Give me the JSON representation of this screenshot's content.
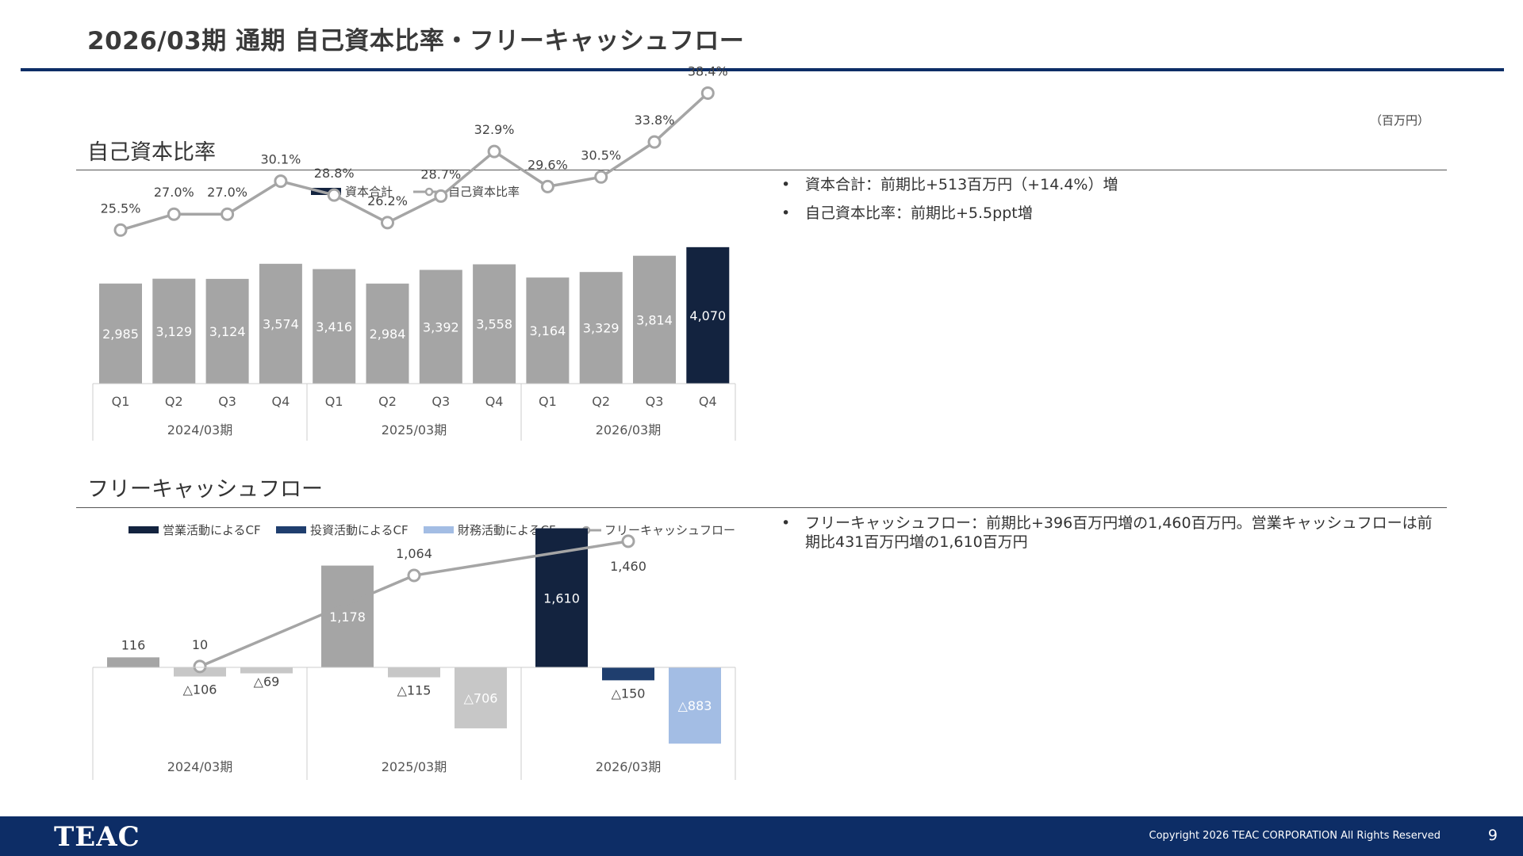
{
  "header": {
    "title": "2026/03期 通期 自己資本比率・フリーキャッシュフロー",
    "unit": "（百万円）"
  },
  "section1": {
    "title": "自己資本比率",
    "bullets": [
      "資本合計：前期比+513百万円（+14.4%）増",
      "自己資本比率：前期比+5.5ppt増"
    ]
  },
  "section2": {
    "title": "フリーキャッシュフロー",
    "bullets": [
      "フリーキャッシュフロー：前期比+396百万円増の1,460百万円。営業キャッシュフローは前期比431百万円増の1,610百万円"
    ]
  },
  "colors": {
    "navy": "#13233f",
    "grey": "#a5a5a5",
    "accent_rule": "#0d2d66",
    "invest": "#1f3e6e",
    "finance": "#a3bde4",
    "light_grey": "#c7c7c7"
  },
  "chart_data": [
    {
      "type": "bar",
      "legend": [
        "資本合計",
        "自己資本比率"
      ],
      "categories": [
        "Q1",
        "Q2",
        "Q3",
        "Q4",
        "Q1",
        "Q2",
        "Q3",
        "Q4",
        "Q1",
        "Q2",
        "Q3",
        "Q4"
      ],
      "groups": [
        "2024/03期",
        "2025/03期",
        "2026/03期"
      ],
      "series": [
        {
          "name": "資本合計",
          "values": [
            2985,
            3129,
            3124,
            3574,
            3416,
            2984,
            3392,
            3558,
            3164,
            3329,
            3814,
            4070
          ],
          "labels": [
            "2,985",
            "3,129",
            "3,124",
            "3,574",
            "3,416",
            "2,984",
            "3,392",
            "3,558",
            "3,164",
            "3,329",
            "3,814",
            "4,070"
          ]
        },
        {
          "name": "自己資本比率",
          "values": [
            25.5,
            27.0,
            27.0,
            30.1,
            28.8,
            26.2,
            28.7,
            32.9,
            29.6,
            30.5,
            33.8,
            38.4
          ],
          "labels": [
            "25.5%",
            "27.0%",
            "27.0%",
            "30.1%",
            "28.8%",
            "26.2%",
            "28.7%",
            "32.9%",
            "29.6%",
            "30.5%",
            "33.8%",
            "38.4%"
          ]
        }
      ]
    },
    {
      "type": "bar",
      "legend": [
        "営業活動によるCF",
        "投資活動によるCF",
        "財務活動によるCF",
        "フリーキャッシュフロー"
      ],
      "categories": [
        "2024/03期",
        "2025/03期",
        "2026/03期"
      ],
      "series": [
        {
          "name": "営業活動によるCF",
          "values": [
            116,
            1178,
            1610
          ],
          "labels": [
            "116",
            "1,178",
            "1,610"
          ]
        },
        {
          "name": "投資活動によるCF",
          "values": [
            -106,
            -115,
            -150
          ],
          "labels": [
            "△106",
            "△115",
            "△150"
          ]
        },
        {
          "name": "財務活動によるCF",
          "values": [
            -69,
            -706,
            -883
          ],
          "labels": [
            "△69",
            "△706",
            "△883"
          ]
        },
        {
          "name": "フリーキャッシュフロー",
          "values": [
            10,
            1064,
            1460
          ],
          "labels": [
            "10",
            "1,064",
            "1,460"
          ]
        }
      ]
    }
  ],
  "footer": {
    "logo": "TEAC",
    "copyright": "Copyright 2026 TEAC CORPORATION All Rights Reserved",
    "page": "9"
  }
}
